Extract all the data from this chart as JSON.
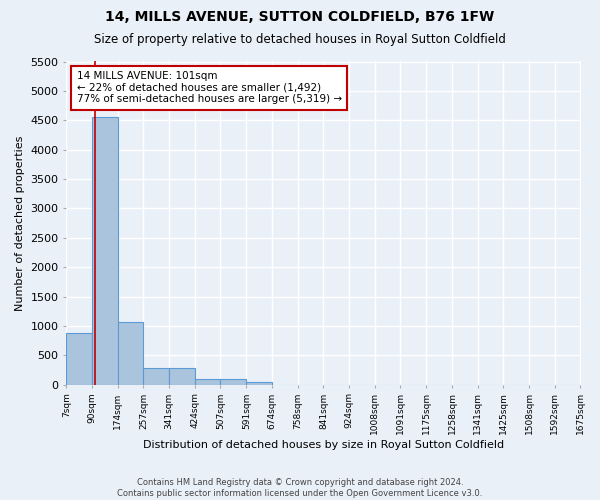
{
  "title": "14, MILLS AVENUE, SUTTON COLDFIELD, B76 1FW",
  "subtitle": "Size of property relative to detached houses in Royal Sutton Coldfield",
  "xlabel": "Distribution of detached houses by size in Royal Sutton Coldfield",
  "ylabel": "Number of detached properties",
  "footer_line1": "Contains HM Land Registry data © Crown copyright and database right 2024.",
  "footer_line2": "Contains public sector information licensed under the Open Government Licence v3.0.",
  "annotation_line1": "14 MILLS AVENUE: 101sqm",
  "annotation_line2": "← 22% of detached houses are smaller (1,492)",
  "annotation_line3": "77% of semi-detached houses are larger (5,319) →",
  "property_sqm": 101,
  "bar_edges": [
    7,
    90,
    174,
    257,
    341,
    424,
    507,
    591,
    674,
    758,
    841,
    924,
    1008,
    1091,
    1175,
    1258,
    1341,
    1425,
    1508,
    1592,
    1675
  ],
  "bar_values": [
    880,
    4560,
    1060,
    290,
    290,
    90,
    90,
    50,
    0,
    0,
    0,
    0,
    0,
    0,
    0,
    0,
    0,
    0,
    0,
    0
  ],
  "bar_color": "#aac4dd",
  "bar_edge_color": "#5b9bd5",
  "vline_color": "#c00000",
  "annotation_box_edge_color": "#c00000",
  "background_color": "#eaf0f8",
  "grid_color": "#ffffff",
  "ylim": [
    0,
    5500
  ],
  "yticks": [
    0,
    500,
    1000,
    1500,
    2000,
    2500,
    3000,
    3500,
    4000,
    4500,
    5000,
    5500
  ]
}
